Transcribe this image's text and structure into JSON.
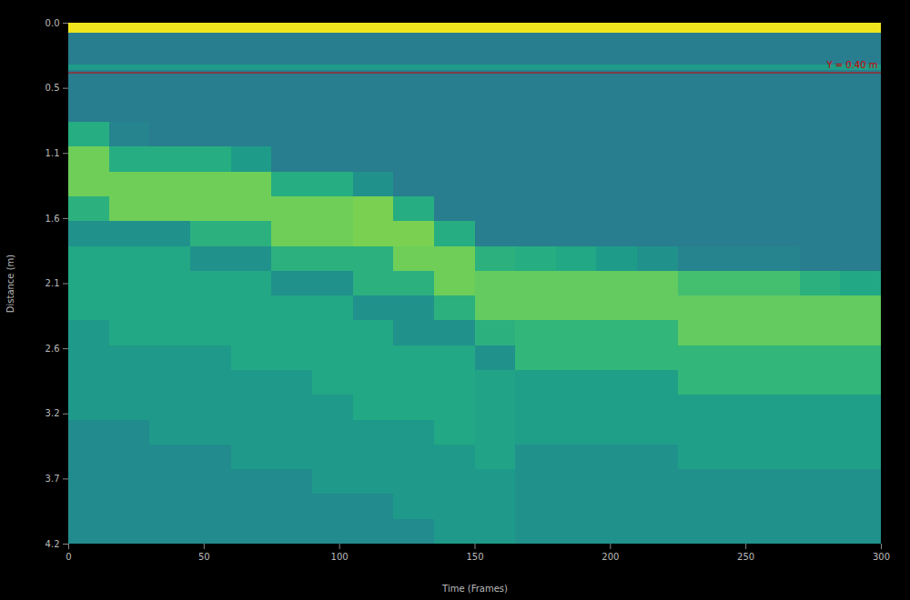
{
  "chart_data": {
    "type": "heatmap",
    "x_label": "Time (Frames)",
    "y_label": "Distance (m)",
    "xlim": [
      0,
      300
    ],
    "xticks": [
      0,
      50,
      100,
      150,
      200,
      250,
      300
    ],
    "ylim": [
      0,
      4.2
    ],
    "yticks": [
      {
        "value": 0,
        "label": "0.0"
      },
      {
        "value": 0.525,
        "label": "0.5"
      },
      {
        "value": 1.05,
        "label": "1.1"
      },
      {
        "value": 1.575,
        "label": "1.6"
      },
      {
        "value": 2.1,
        "label": "2.1"
      },
      {
        "value": 2.625,
        "label": "2.6"
      },
      {
        "value": 3.15,
        "label": "3.2"
      },
      {
        "value": 3.675,
        "label": "3.7"
      },
      {
        "value": 4.2,
        "label": "4.2"
      }
    ],
    "color": "viridis",
    "zlim": [
      0,
      1
    ],
    "x_edges": [
      0,
      15,
      30,
      45,
      60,
      75,
      90,
      105,
      120,
      135,
      150,
      165,
      180,
      195,
      210,
      225,
      240,
      255,
      270,
      285,
      300
    ],
    "y_edges": [
      0,
      0.08,
      0.34,
      0.38,
      0.6,
      0.8,
      1.0,
      1.2,
      1.4,
      1.6,
      1.8,
      2.0,
      2.2,
      2.4,
      2.6,
      2.8,
      3.0,
      3.2,
      3.4,
      3.6,
      3.8,
      4.0,
      4.2
    ],
    "z": [
      [
        0.98,
        0.42,
        0.55,
        0.42,
        0.42,
        0.62,
        0.78,
        0.78,
        0.64,
        0.5,
        0.6,
        0.6,
        0.6,
        0.54,
        0.54,
        0.54,
        0.54,
        0.48,
        0.48,
        0.48,
        0.48,
        0.48
      ],
      [
        0.98,
        0.42,
        0.55,
        0.42,
        0.42,
        0.45,
        0.62,
        0.78,
        0.78,
        0.5,
        0.6,
        0.6,
        0.6,
        0.6,
        0.54,
        0.54,
        0.54,
        0.48,
        0.48,
        0.48,
        0.48,
        0.48
      ],
      [
        0.98,
        0.42,
        0.55,
        0.42,
        0.42,
        0.42,
        0.62,
        0.78,
        0.78,
        0.5,
        0.6,
        0.6,
        0.6,
        0.6,
        0.54,
        0.54,
        0.54,
        0.54,
        0.48,
        0.48,
        0.48,
        0.48
      ],
      [
        0.98,
        0.42,
        0.55,
        0.42,
        0.42,
        0.42,
        0.62,
        0.78,
        0.78,
        0.64,
        0.5,
        0.6,
        0.6,
        0.6,
        0.54,
        0.54,
        0.54,
        0.54,
        0.48,
        0.48,
        0.48,
        0.48
      ],
      [
        0.98,
        0.42,
        0.55,
        0.42,
        0.42,
        0.42,
        0.55,
        0.78,
        0.78,
        0.64,
        0.5,
        0.6,
        0.6,
        0.6,
        0.6,
        0.54,
        0.54,
        0.54,
        0.54,
        0.48,
        0.48,
        0.48
      ],
      [
        0.98,
        0.42,
        0.55,
        0.42,
        0.42,
        0.42,
        0.42,
        0.62,
        0.78,
        0.78,
        0.64,
        0.5,
        0.6,
        0.6,
        0.6,
        0.54,
        0.54,
        0.54,
        0.54,
        0.48,
        0.48,
        0.48
      ],
      [
        0.98,
        0.42,
        0.55,
        0.42,
        0.42,
        0.42,
        0.42,
        0.62,
        0.78,
        0.78,
        0.64,
        0.5,
        0.6,
        0.6,
        0.6,
        0.6,
        0.54,
        0.54,
        0.54,
        0.54,
        0.48,
        0.48
      ],
      [
        0.98,
        0.42,
        0.55,
        0.42,
        0.42,
        0.42,
        0.42,
        0.5,
        0.8,
        0.8,
        0.64,
        0.64,
        0.5,
        0.6,
        0.6,
        0.6,
        0.6,
        0.54,
        0.54,
        0.54,
        0.48,
        0.48
      ],
      [
        0.98,
        0.42,
        0.55,
        0.42,
        0.42,
        0.42,
        0.42,
        0.42,
        0.62,
        0.8,
        0.78,
        0.64,
        0.5,
        0.5,
        0.6,
        0.6,
        0.6,
        0.54,
        0.54,
        0.54,
        0.54,
        0.48
      ],
      [
        0.98,
        0.42,
        0.55,
        0.42,
        0.42,
        0.42,
        0.42,
        0.42,
        0.42,
        0.62,
        0.78,
        0.78,
        0.64,
        0.5,
        0.6,
        0.6,
        0.6,
        0.6,
        0.54,
        0.54,
        0.54,
        0.54
      ],
      [
        0.98,
        0.42,
        0.55,
        0.42,
        0.42,
        0.42,
        0.42,
        0.42,
        0.42,
        0.42,
        0.64,
        0.76,
        0.76,
        0.64,
        0.5,
        0.58,
        0.58,
        0.58,
        0.58,
        0.54,
        0.54,
        0.54
      ],
      [
        0.98,
        0.42,
        0.55,
        0.42,
        0.42,
        0.42,
        0.42,
        0.42,
        0.42,
        0.42,
        0.62,
        0.76,
        0.76,
        0.66,
        0.66,
        0.56,
        0.56,
        0.56,
        0.5,
        0.5,
        0.5,
        0.5
      ],
      [
        0.98,
        0.42,
        0.55,
        0.42,
        0.42,
        0.42,
        0.42,
        0.42,
        0.42,
        0.42,
        0.6,
        0.76,
        0.76,
        0.66,
        0.66,
        0.56,
        0.56,
        0.56,
        0.5,
        0.5,
        0.5,
        0.5
      ],
      [
        0.98,
        0.42,
        0.55,
        0.42,
        0.42,
        0.42,
        0.42,
        0.42,
        0.42,
        0.42,
        0.55,
        0.76,
        0.76,
        0.66,
        0.66,
        0.56,
        0.56,
        0.56,
        0.5,
        0.5,
        0.5,
        0.5
      ],
      [
        0.98,
        0.42,
        0.55,
        0.42,
        0.42,
        0.42,
        0.42,
        0.42,
        0.42,
        0.42,
        0.5,
        0.76,
        0.76,
        0.66,
        0.66,
        0.56,
        0.56,
        0.56,
        0.5,
        0.5,
        0.5,
        0.5
      ],
      [
        0.98,
        0.42,
        0.55,
        0.42,
        0.42,
        0.42,
        0.42,
        0.42,
        0.42,
        0.42,
        0.45,
        0.7,
        0.76,
        0.76,
        0.66,
        0.66,
        0.56,
        0.56,
        0.56,
        0.5,
        0.5,
        0.5
      ],
      [
        0.98,
        0.42,
        0.55,
        0.42,
        0.42,
        0.42,
        0.42,
        0.42,
        0.42,
        0.42,
        0.45,
        0.7,
        0.76,
        0.76,
        0.66,
        0.66,
        0.56,
        0.56,
        0.56,
        0.5,
        0.5,
        0.5
      ],
      [
        0.98,
        0.42,
        0.55,
        0.42,
        0.42,
        0.42,
        0.42,
        0.42,
        0.42,
        0.42,
        0.45,
        0.7,
        0.76,
        0.76,
        0.66,
        0.66,
        0.56,
        0.56,
        0.56,
        0.5,
        0.5,
        0.5
      ],
      [
        0.98,
        0.42,
        0.55,
        0.42,
        0.42,
        0.42,
        0.42,
        0.42,
        0.42,
        0.42,
        0.42,
        0.64,
        0.76,
        0.76,
        0.66,
        0.66,
        0.56,
        0.56,
        0.56,
        0.5,
        0.5,
        0.5
      ],
      [
        0.98,
        0.42,
        0.55,
        0.42,
        0.42,
        0.42,
        0.42,
        0.42,
        0.42,
        0.42,
        0.42,
        0.6,
        0.76,
        0.76,
        0.66,
        0.66,
        0.56,
        0.56,
        0.56,
        0.5,
        0.5,
        0.5
      ]
    ],
    "annotations": [
      {
        "y": 0.4,
        "text": "Y = 0.40 m",
        "color": "#cc0000"
      }
    ]
  }
}
